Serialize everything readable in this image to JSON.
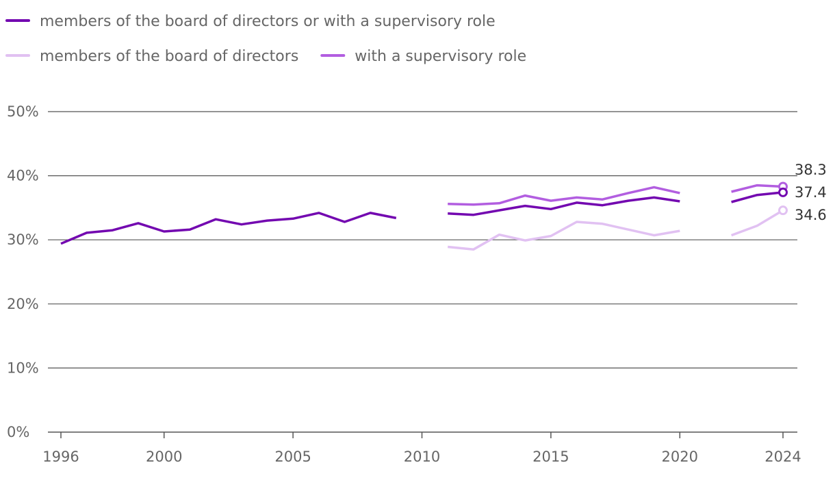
{
  "chart_data": {
    "type": "line",
    "title": "",
    "xlabel": "",
    "ylabel": "",
    "x": [
      1996,
      1997,
      1998,
      1999,
      2000,
      2001,
      2002,
      2003,
      2004,
      2005,
      2006,
      2007,
      2008,
      2009,
      2010,
      2011,
      2012,
      2013,
      2014,
      2015,
      2016,
      2017,
      2018,
      2019,
      2020,
      2021,
      2022,
      2023,
      2024
    ],
    "xlim": [
      1995.5,
      2024.6
    ],
    "ylim": [
      0,
      50
    ],
    "x_ticks": [
      {
        "value": 1996,
        "label": "1996"
      },
      {
        "value": 2000,
        "label": "2000"
      },
      {
        "value": 2005,
        "label": "2005"
      },
      {
        "value": 2010,
        "label": "2010"
      },
      {
        "value": 2015,
        "label": "2015"
      },
      {
        "value": 2020,
        "label": "2020"
      },
      {
        "value": 2024,
        "label": "2024"
      }
    ],
    "y_ticks": [
      {
        "value": 0,
        "label": "0%"
      },
      {
        "value": 10,
        "label": "10%"
      },
      {
        "value": 20,
        "label": "20%"
      },
      {
        "value": 30,
        "label": "30%"
      },
      {
        "value": 40,
        "label": "40%"
      },
      {
        "value": 50,
        "label": "50%"
      }
    ],
    "grid": true,
    "legend_position": "top-left",
    "series": [
      {
        "id": "board-or-supervisory",
        "name": "members of the board of directors or with a supervisory role",
        "color": "#7308b0",
        "values": [
          29.4,
          31.1,
          31.5,
          32.6,
          31.3,
          31.6,
          33.2,
          32.4,
          33.0,
          33.3,
          34.2,
          32.8,
          34.2,
          33.4,
          null,
          34.1,
          33.9,
          34.6,
          35.3,
          34.8,
          35.8,
          35.4,
          36.1,
          36.6,
          36.0,
          null,
          35.9,
          37.0,
          37.4
        ],
        "end_label": "37.4"
      },
      {
        "id": "board",
        "name": "members of the board of directors",
        "color": "#e1c1f2",
        "values": [
          null,
          null,
          null,
          null,
          null,
          null,
          null,
          null,
          null,
          null,
          null,
          null,
          null,
          null,
          null,
          28.9,
          28.5,
          30.8,
          29.9,
          30.6,
          32.8,
          32.5,
          31.6,
          30.7,
          31.4,
          null,
          30.7,
          32.2,
          34.6
        ],
        "end_label": "34.6"
      },
      {
        "id": "supervisory",
        "name": "with a supervisory role",
        "color": "#b25ee0",
        "values": [
          null,
          null,
          null,
          null,
          null,
          null,
          null,
          null,
          null,
          null,
          null,
          null,
          null,
          null,
          null,
          35.6,
          35.5,
          35.7,
          36.9,
          36.1,
          36.6,
          36.3,
          37.3,
          38.2,
          37.3,
          null,
          37.5,
          38.5,
          38.3
        ],
        "end_label": "38.3"
      }
    ],
    "legend_rows": [
      [
        "board-or-supervisory"
      ],
      [
        "board",
        "supervisory"
      ]
    ]
  }
}
